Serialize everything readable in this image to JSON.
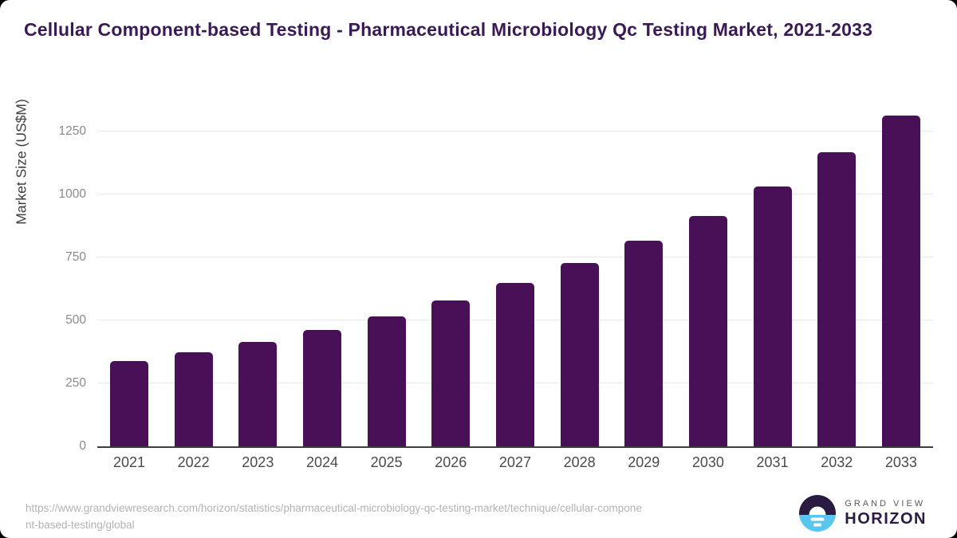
{
  "title": "Cellular Component-based Testing - Pharmaceutical Microbiology Qc Testing Market, 2021-2033",
  "chart_data": {
    "type": "bar",
    "title": "Cellular Component-based Testing - Pharmaceutical Microbiology Qc Testing Market, 2021-2033",
    "categories": [
      "2021",
      "2022",
      "2023",
      "2024",
      "2025",
      "2026",
      "2027",
      "2028",
      "2029",
      "2030",
      "2031",
      "2032",
      "2033"
    ],
    "values": [
      340,
      375,
      415,
      462,
      517,
      580,
      650,
      728,
      817,
      916,
      1032,
      1167,
      1315
    ],
    "xlabel": "",
    "ylabel": "Market Size (US$M)",
    "y_ticks": [
      0,
      250,
      500,
      750,
      1000,
      1250
    ],
    "ylim": [
      0,
      1330
    ],
    "grid": true,
    "legend": "none",
    "bar_color": "#481157"
  },
  "footer": {
    "url_line1": "https://www.grandviewresearch.com/horizon/statistics/pharmaceutical-microbiology-qc-testing-market/technique/cellular-compone",
    "url_line2": "nt-based-testing/global",
    "logo_top": "GRAND VIEW",
    "logo_bottom": "HORIZON"
  },
  "colors": {
    "title_text": "#3a1a54",
    "bar": "#481157",
    "tick_text": "#8a8a8a",
    "axis_label_text": "#3f3f3f",
    "gridline": "#e8e8e8",
    "footer_text": "#b3b3b3",
    "logo_dark": "#2b1b43",
    "logo_blue": "#59c6f0"
  }
}
